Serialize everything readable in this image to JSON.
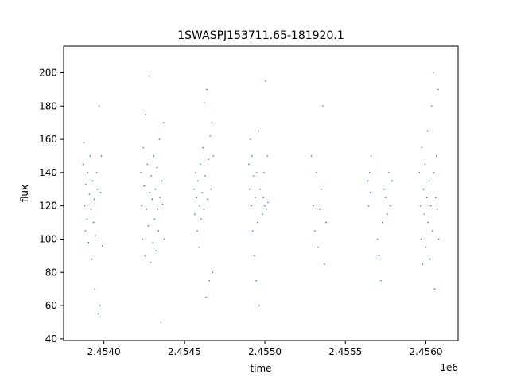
{
  "chart_data": {
    "type": "scatter",
    "title": "1SWASPJ153711.65-181920.1",
    "xlabel": "time",
    "ylabel": "flux",
    "x_offset_label": "1e6",
    "xlim": [
      2453750,
      2456200
    ],
    "ylim": [
      39,
      216
    ],
    "x_ticks": [
      2454000,
      2454500,
      2455000,
      2455500,
      2456000
    ],
    "x_tick_labels": [
      "2.4540",
      "2.4545",
      "2.4550",
      "2.4555",
      "2.4560"
    ],
    "y_ticks": [
      40,
      60,
      80,
      100,
      120,
      140,
      160,
      180,
      200
    ],
    "y_tick_labels": [
      "40",
      "60",
      "80",
      "100",
      "120",
      "140",
      "160",
      "180",
      "200"
    ],
    "grid": false,
    "marker_color": "#1f77b4",
    "series": [
      {
        "points": [
          [
            2453870,
            145
          ],
          [
            2453875,
            158
          ],
          [
            2453880,
            120
          ],
          [
            2453885,
            105
          ],
          [
            2453890,
            133
          ],
          [
            2453895,
            112
          ],
          [
            2453900,
            140
          ],
          [
            2453905,
            98
          ],
          [
            2453910,
            127
          ],
          [
            2453915,
            150
          ],
          [
            2453920,
            118
          ],
          [
            2453925,
            88
          ],
          [
            2453930,
            135
          ],
          [
            2453935,
            110
          ],
          [
            2453940,
            124
          ],
          [
            2453945,
            70
          ],
          [
            2453950,
            102
          ],
          [
            2453955,
            140
          ],
          [
            2453960,
            130
          ],
          [
            2453965,
            55
          ],
          [
            2453970,
            180
          ],
          [
            2453975,
            60
          ],
          [
            2453980,
            128
          ],
          [
            2453985,
            150
          ],
          [
            2453990,
            96
          ],
          [
            2454230,
            140
          ],
          [
            2454235,
            120
          ],
          [
            2454240,
            100
          ],
          [
            2454245,
            155
          ],
          [
            2454250,
            132
          ],
          [
            2454255,
            90
          ],
          [
            2454260,
            175
          ],
          [
            2454265,
            118
          ],
          [
            2454270,
            145
          ],
          [
            2454275,
            108
          ],
          [
            2454280,
            198
          ],
          [
            2454285,
            128
          ],
          [
            2454290,
            86
          ],
          [
            2454295,
            138
          ],
          [
            2454300,
            124
          ],
          [
            2454305,
            98
          ],
          [
            2454310,
            150
          ],
          [
            2454315,
            112
          ],
          [
            2454320,
            130
          ],
          [
            2454325,
            93
          ],
          [
            2454330,
            143
          ],
          [
            2454335,
            118
          ],
          [
            2454340,
            105
          ],
          [
            2454345,
            160
          ],
          [
            2454350,
            125
          ],
          [
            2454355,
            50
          ],
          [
            2454360,
            135
          ],
          [
            2454365,
            121
          ],
          [
            2454370,
            170
          ],
          [
            2454375,
            100
          ],
          [
            2454560,
            130
          ],
          [
            2454565,
            115
          ],
          [
            2454570,
            140
          ],
          [
            2454575,
            125
          ],
          [
            2454580,
            105
          ],
          [
            2454585,
            135
          ],
          [
            2454590,
            95
          ],
          [
            2454595,
            120
          ],
          [
            2454600,
            145
          ],
          [
            2454605,
            112
          ],
          [
            2454610,
            128
          ],
          [
            2454615,
            155
          ],
          [
            2454620,
            118
          ],
          [
            2454625,
            182
          ],
          [
            2454630,
            138
          ],
          [
            2454635,
            65
          ],
          [
            2454640,
            190
          ],
          [
            2454645,
            124
          ],
          [
            2454650,
            148
          ],
          [
            2454655,
            75
          ],
          [
            2454660,
            162
          ],
          [
            2454665,
            130
          ],
          [
            2454670,
            170
          ],
          [
            2454675,
            80
          ],
          [
            2454680,
            150
          ],
          [
            2454900,
            145
          ],
          [
            2454905,
            130
          ],
          [
            2454910,
            160
          ],
          [
            2454915,
            120
          ],
          [
            2454920,
            150
          ],
          [
            2454925,
            105
          ],
          [
            2454930,
            138
          ],
          [
            2454935,
            90
          ],
          [
            2454940,
            125
          ],
          [
            2454945,
            75
          ],
          [
            2454950,
            140
          ],
          [
            2454955,
            110
          ],
          [
            2454960,
            165
          ],
          [
            2454965,
            60
          ],
          [
            2454970,
            130
          ],
          [
            2454985,
            115
          ],
          [
            2454990,
            125
          ],
          [
            2454995,
            140
          ],
          [
            2455000,
            120
          ],
          [
            2455005,
            195
          ],
          [
            2455010,
            118
          ],
          [
            2455015,
            150
          ],
          [
            2455020,
            122
          ],
          [
            2455290,
            150
          ],
          [
            2455300,
            120
          ],
          [
            2455310,
            105
          ],
          [
            2455320,
            140
          ],
          [
            2455330,
            95
          ],
          [
            2455340,
            118
          ],
          [
            2455350,
            130
          ],
          [
            2455360,
            180
          ],
          [
            2455370,
            85
          ],
          [
            2455380,
            110
          ],
          [
            2455640,
            135
          ],
          [
            2455645,
            120
          ],
          [
            2455650,
            140
          ],
          [
            2455655,
            128
          ],
          [
            2455660,
            150
          ],
          [
            2455700,
            100
          ],
          [
            2455710,
            90
          ],
          [
            2455720,
            75
          ],
          [
            2455730,
            110
          ],
          [
            2455740,
            130
          ],
          [
            2455750,
            125
          ],
          [
            2455760,
            115
          ],
          [
            2455770,
            140
          ],
          [
            2455780,
            120
          ],
          [
            2455790,
            135
          ],
          [
            2455960,
            140
          ],
          [
            2455965,
            120
          ],
          [
            2455970,
            100
          ],
          [
            2455975,
            155
          ],
          [
            2455980,
            85
          ],
          [
            2455985,
            130
          ],
          [
            2455990,
            115
          ],
          [
            2455995,
            145
          ],
          [
            2456000,
            95
          ],
          [
            2456005,
            125
          ],
          [
            2456010,
            165
          ],
          [
            2456015,
            110
          ],
          [
            2456020,
            135
          ],
          [
            2456025,
            88
          ],
          [
            2456030,
            120
          ],
          [
            2456035,
            180
          ],
          [
            2456040,
            105
          ],
          [
            2456045,
            200
          ],
          [
            2456050,
            140
          ],
          [
            2456055,
            70
          ],
          [
            2456060,
            125
          ],
          [
            2456065,
            150
          ],
          [
            2456070,
            118
          ],
          [
            2456075,
            190
          ],
          [
            2456080,
            100
          ]
        ]
      }
    ]
  }
}
